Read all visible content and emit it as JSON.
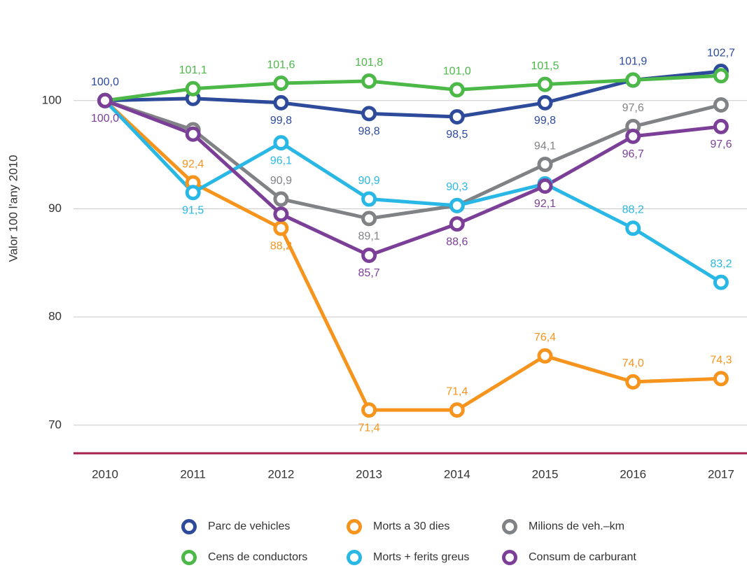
{
  "chart_data": {
    "type": "line",
    "y_label": "Valor 100 l'any 2010",
    "categories": [
      "2010",
      "2011",
      "2012",
      "2013",
      "2014",
      "2015",
      "2016",
      "2017"
    ],
    "ylim": [
      67.4,
      106
    ],
    "yticks": [
      70,
      80,
      90,
      100
    ],
    "grid": true,
    "series": [
      {
        "name": "Parc de vehicles",
        "color": "#2e4a9a",
        "values": [
          100.0,
          100.2,
          99.8,
          98.8,
          98.5,
          99.8,
          101.9,
          102.7
        ],
        "value_labels": [
          "100,0",
          null,
          "99,8",
          "98,8",
          "98,5",
          "99,8",
          "101,9",
          "102,7"
        ]
      },
      {
        "name": "Morts a 30 dies",
        "color": "#f7941d",
        "values": [
          100.0,
          92.4,
          88.2,
          71.4,
          71.4,
          76.4,
          74.0,
          74.3
        ],
        "value_labels": [
          null,
          "92,4",
          "88,2",
          "71,4",
          "71,4",
          "76,4",
          "74,0",
          "74,3"
        ]
      },
      {
        "name": "Milions de veh.–km",
        "color": "#808285",
        "values": [
          100.0,
          97.3,
          90.9,
          89.1,
          90.3,
          94.1,
          97.6,
          99.6
        ],
        "value_labels": [
          null,
          null,
          "90,9",
          "89,1",
          null,
          "94,1",
          "97,6",
          null
        ]
      },
      {
        "name": "Cens de conductors",
        "color": "#4cb848",
        "values": [
          100.0,
          101.1,
          101.6,
          101.8,
          101.0,
          101.5,
          101.9,
          102.3
        ],
        "value_labels": [
          null,
          "101,1",
          "101,6",
          "101,8",
          "101,0",
          "101,5",
          null,
          null
        ]
      },
      {
        "name": "Morts + ferits greus",
        "color": "#29b8e5",
        "values": [
          100.0,
          91.5,
          96.1,
          90.9,
          90.3,
          92.3,
          88.2,
          83.2
        ],
        "value_labels": [
          null,
          "91,5",
          "96,1",
          "90,9",
          "90,3",
          null,
          "88,2",
          "83,2"
        ]
      },
      {
        "name": "Consum de carburant",
        "color": "#7b3f98",
        "values": [
          100.0,
          96.9,
          89.5,
          85.7,
          88.6,
          92.1,
          96.7,
          97.6
        ],
        "value_labels": [
          "100,0",
          null,
          null,
          "85,7",
          "88,6",
          "92,1",
          "96,7",
          "97,6"
        ]
      }
    ]
  }
}
